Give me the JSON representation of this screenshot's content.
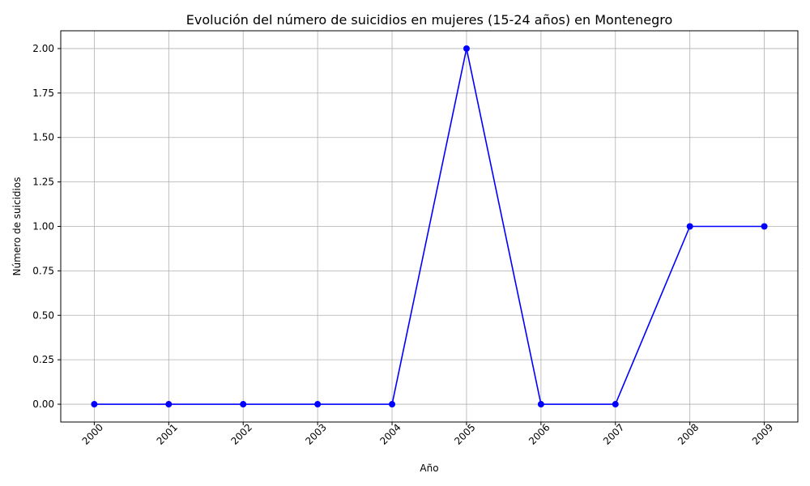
{
  "chart_data": {
    "type": "line",
    "title": "Evolución del número de suicidios en mujeres (15-24 años) en Montenegro",
    "xlabel": "Año",
    "ylabel": "Número de suicidios",
    "x": [
      "2000",
      "2001",
      "2002",
      "2003",
      "2004",
      "2005",
      "2006",
      "2007",
      "2008",
      "2009"
    ],
    "series": [
      {
        "values": [
          0,
          0,
          0,
          0,
          0,
          2,
          0,
          0,
          1,
          1
        ],
        "color": "#0000ff"
      }
    ],
    "ylim": [
      -0.1,
      2.1
    ],
    "yticks": [
      "0.00",
      "0.25",
      "0.50",
      "0.75",
      "1.00",
      "1.25",
      "1.50",
      "1.75",
      "2.00"
    ],
    "grid": true,
    "marker": "circle"
  }
}
